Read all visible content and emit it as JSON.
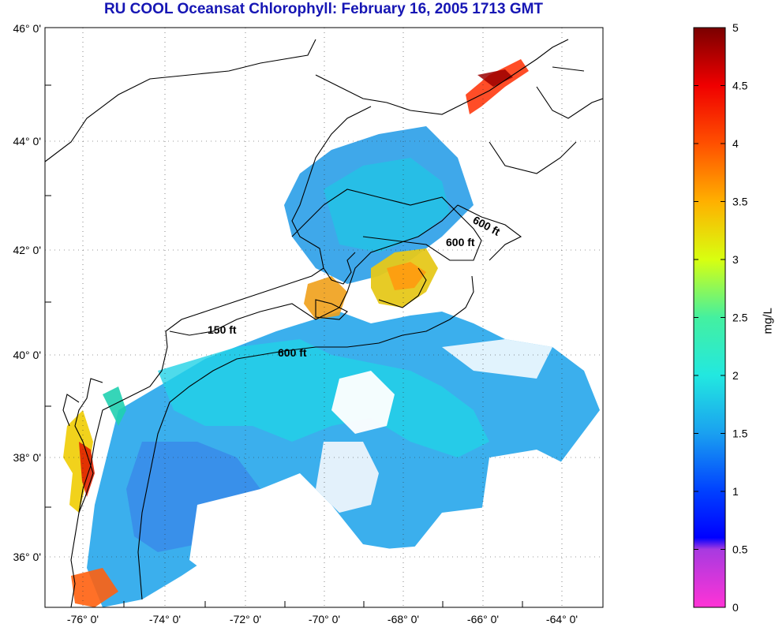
{
  "title": "RU COOL  Oceansat Chlorophyll:  February 16, 2005 1713 GMT",
  "map": {
    "lat_ticks": [
      "46° 0'",
      "44° 0'",
      "42° 0'",
      "40° 0'",
      "38° 0'",
      "36° 0'"
    ],
    "lon_ticks": [
      "-76° 0'",
      "-74° 0'",
      "-72° 0'",
      "-70° 0'",
      "-68° 0'",
      "-66° 0'",
      "-64° 0'"
    ],
    "contour_labels": [
      "600 ft",
      "600 ft",
      "150 ft",
      "600 ft"
    ]
  },
  "colorbar": {
    "unit": "mg/L",
    "ticks": [
      "5",
      "4.5",
      "4",
      "3.5",
      "3",
      "2.5",
      "2",
      "1.5",
      "1",
      "0.5",
      "0"
    ],
    "min": 0,
    "max": 5
  }
}
